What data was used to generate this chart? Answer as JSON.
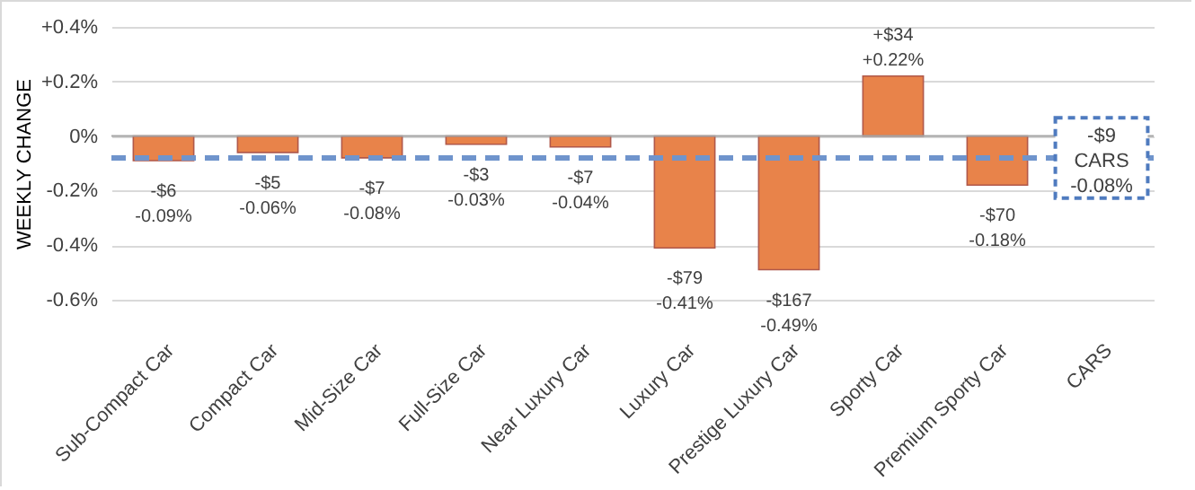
{
  "chart_data": {
    "type": "bar",
    "ylabel": "WEEKLY CHANGE",
    "categories": [
      "Sub-Compact Car",
      "Compact Car",
      "Mid-Size Car",
      "Full-Size Car",
      "Near Luxury Car",
      "Luxury Car",
      "Prestige Luxury Car",
      "Sporty Car",
      "Premium Sporty Car",
      "CARS"
    ],
    "values": [
      -0.09,
      -0.06,
      -0.08,
      -0.03,
      -0.04,
      -0.41,
      -0.49,
      0.22,
      -0.18,
      null
    ],
    "value_labels": [
      "-$6\n-0.09%",
      "-$5\n-0.06%",
      "-$7\n-0.08%",
      "-$3\n-0.03%",
      "-$7\n-0.04%",
      "-$79\n-0.41%",
      "-$167\n-0.49%",
      "+$34\n+0.22%",
      "-$70\n-0.18%",
      null
    ],
    "color": "#e8834a",
    "ylim": [
      -0.6,
      0.4
    ],
    "yticks": [
      {
        "value": -0.6,
        "label": "-0.6%"
      },
      {
        "value": -0.4,
        "label": "-0.4%"
      },
      {
        "value": -0.2,
        "label": "-0.2%"
      },
      {
        "value": 0,
        "label": "0%"
      },
      {
        "value": 0.2,
        "label": "+0.2%"
      },
      {
        "value": 0.4,
        "label": "+0.4%"
      }
    ],
    "grid": "y",
    "ref_lines": [
      {
        "axis": "y",
        "value": -0.08,
        "color": "#6f94cc",
        "line_style": "dashed"
      }
    ],
    "annotations": [
      {
        "text": "-$9\nCARS\n-0.08%",
        "x": "CARS",
        "y": -0.08
      }
    ]
  }
}
